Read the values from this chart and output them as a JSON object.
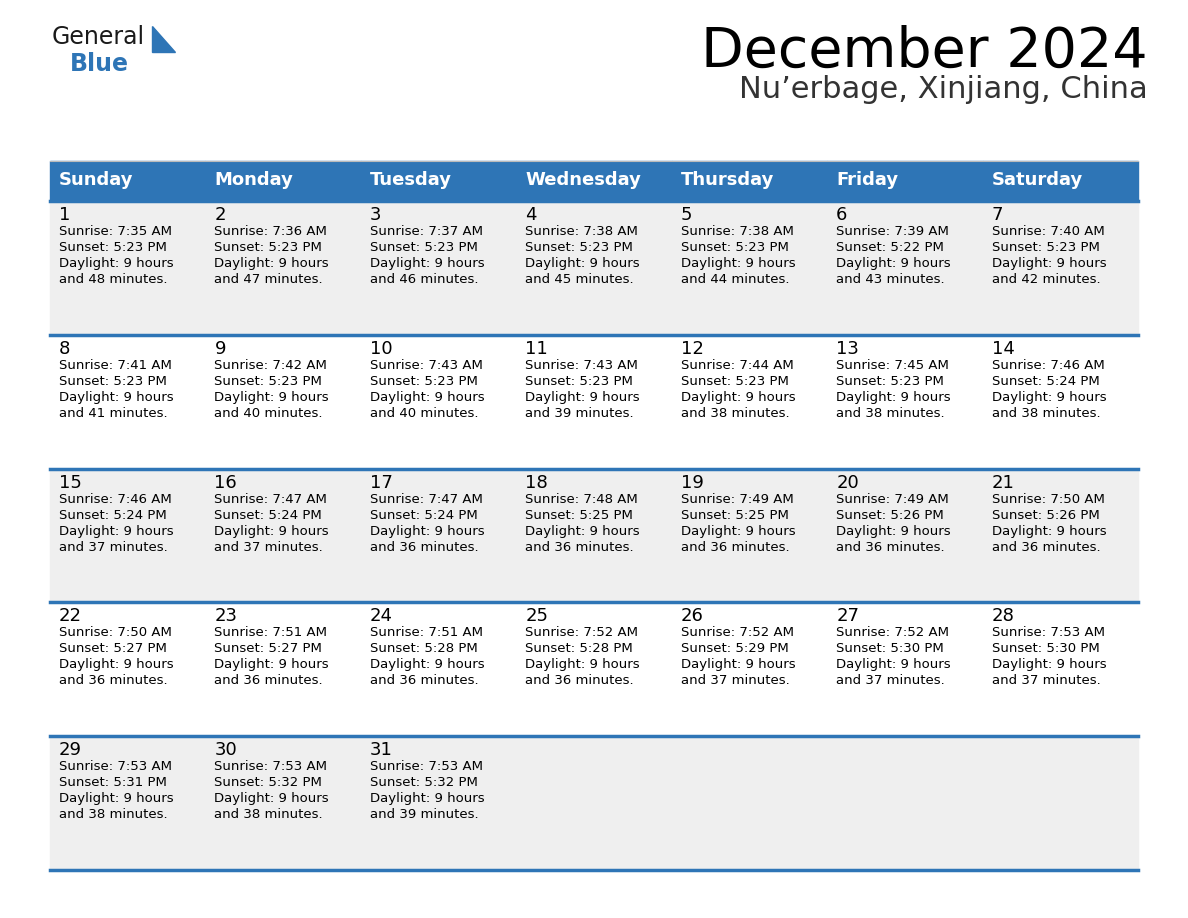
{
  "title": "December 2024",
  "subtitle": "Nu’erbage, Xinjiang, China",
  "days_of_week": [
    "Sunday",
    "Monday",
    "Tuesday",
    "Wednesday",
    "Thursday",
    "Friday",
    "Saturday"
  ],
  "header_bg": "#2E75B6",
  "header_text": "#FFFFFF",
  "cell_bg_odd_row": "#EFEFEF",
  "cell_bg_even_row": "#FFFFFF",
  "row_line_color": "#2E75B6",
  "text_color": "#000000",
  "calendar_data": [
    [
      {
        "day": 1,
        "sunrise": "7:35 AM",
        "sunset": "5:23 PM",
        "daylight_hours": 9,
        "daylight_minutes": 48
      },
      {
        "day": 2,
        "sunrise": "7:36 AM",
        "sunset": "5:23 PM",
        "daylight_hours": 9,
        "daylight_minutes": 47
      },
      {
        "day": 3,
        "sunrise": "7:37 AM",
        "sunset": "5:23 PM",
        "daylight_hours": 9,
        "daylight_minutes": 46
      },
      {
        "day": 4,
        "sunrise": "7:38 AM",
        "sunset": "5:23 PM",
        "daylight_hours": 9,
        "daylight_minutes": 45
      },
      {
        "day": 5,
        "sunrise": "7:38 AM",
        "sunset": "5:23 PM",
        "daylight_hours": 9,
        "daylight_minutes": 44
      },
      {
        "day": 6,
        "sunrise": "7:39 AM",
        "sunset": "5:22 PM",
        "daylight_hours": 9,
        "daylight_minutes": 43
      },
      {
        "day": 7,
        "sunrise": "7:40 AM",
        "sunset": "5:23 PM",
        "daylight_hours": 9,
        "daylight_minutes": 42
      }
    ],
    [
      {
        "day": 8,
        "sunrise": "7:41 AM",
        "sunset": "5:23 PM",
        "daylight_hours": 9,
        "daylight_minutes": 41
      },
      {
        "day": 9,
        "sunrise": "7:42 AM",
        "sunset": "5:23 PM",
        "daylight_hours": 9,
        "daylight_minutes": 40
      },
      {
        "day": 10,
        "sunrise": "7:43 AM",
        "sunset": "5:23 PM",
        "daylight_hours": 9,
        "daylight_minutes": 40
      },
      {
        "day": 11,
        "sunrise": "7:43 AM",
        "sunset": "5:23 PM",
        "daylight_hours": 9,
        "daylight_minutes": 39
      },
      {
        "day": 12,
        "sunrise": "7:44 AM",
        "sunset": "5:23 PM",
        "daylight_hours": 9,
        "daylight_minutes": 38
      },
      {
        "day": 13,
        "sunrise": "7:45 AM",
        "sunset": "5:23 PM",
        "daylight_hours": 9,
        "daylight_minutes": 38
      },
      {
        "day": 14,
        "sunrise": "7:46 AM",
        "sunset": "5:24 PM",
        "daylight_hours": 9,
        "daylight_minutes": 38
      }
    ],
    [
      {
        "day": 15,
        "sunrise": "7:46 AM",
        "sunset": "5:24 PM",
        "daylight_hours": 9,
        "daylight_minutes": 37
      },
      {
        "day": 16,
        "sunrise": "7:47 AM",
        "sunset": "5:24 PM",
        "daylight_hours": 9,
        "daylight_minutes": 37
      },
      {
        "day": 17,
        "sunrise": "7:47 AM",
        "sunset": "5:24 PM",
        "daylight_hours": 9,
        "daylight_minutes": 36
      },
      {
        "day": 18,
        "sunrise": "7:48 AM",
        "sunset": "5:25 PM",
        "daylight_hours": 9,
        "daylight_minutes": 36
      },
      {
        "day": 19,
        "sunrise": "7:49 AM",
        "sunset": "5:25 PM",
        "daylight_hours": 9,
        "daylight_minutes": 36
      },
      {
        "day": 20,
        "sunrise": "7:49 AM",
        "sunset": "5:26 PM",
        "daylight_hours": 9,
        "daylight_minutes": 36
      },
      {
        "day": 21,
        "sunrise": "7:50 AM",
        "sunset": "5:26 PM",
        "daylight_hours": 9,
        "daylight_minutes": 36
      }
    ],
    [
      {
        "day": 22,
        "sunrise": "7:50 AM",
        "sunset": "5:27 PM",
        "daylight_hours": 9,
        "daylight_minutes": 36
      },
      {
        "day": 23,
        "sunrise": "7:51 AM",
        "sunset": "5:27 PM",
        "daylight_hours": 9,
        "daylight_minutes": 36
      },
      {
        "day": 24,
        "sunrise": "7:51 AM",
        "sunset": "5:28 PM",
        "daylight_hours": 9,
        "daylight_minutes": 36
      },
      {
        "day": 25,
        "sunrise": "7:52 AM",
        "sunset": "5:28 PM",
        "daylight_hours": 9,
        "daylight_minutes": 36
      },
      {
        "day": 26,
        "sunrise": "7:52 AM",
        "sunset": "5:29 PM",
        "daylight_hours": 9,
        "daylight_minutes": 37
      },
      {
        "day": 27,
        "sunrise": "7:52 AM",
        "sunset": "5:30 PM",
        "daylight_hours": 9,
        "daylight_minutes": 37
      },
      {
        "day": 28,
        "sunrise": "7:53 AM",
        "sunset": "5:30 PM",
        "daylight_hours": 9,
        "daylight_minutes": 37
      }
    ],
    [
      {
        "day": 29,
        "sunrise": "7:53 AM",
        "sunset": "5:31 PM",
        "daylight_hours": 9,
        "daylight_minutes": 38
      },
      {
        "day": 30,
        "sunrise": "7:53 AM",
        "sunset": "5:32 PM",
        "daylight_hours": 9,
        "daylight_minutes": 38
      },
      {
        "day": 31,
        "sunrise": "7:53 AM",
        "sunset": "5:32 PM",
        "daylight_hours": 9,
        "daylight_minutes": 39
      },
      null,
      null,
      null,
      null
    ]
  ]
}
